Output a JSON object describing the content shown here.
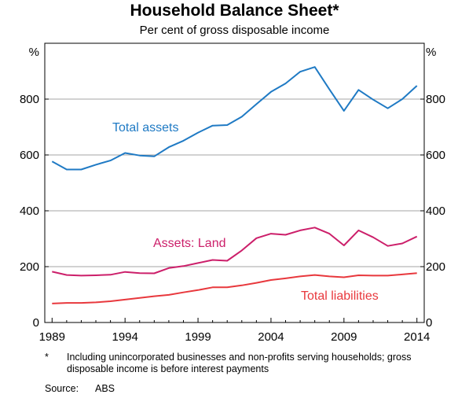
{
  "chart_data": {
    "type": "line",
    "title": "Household Balance Sheet*",
    "subtitle": "Per cent of gross disposable income",
    "y_unit": "%",
    "ylim": [
      0,
      1000
    ],
    "y_ticks": [
      0,
      200,
      400,
      600,
      800
    ],
    "xlim": [
      1988.5,
      2014.5
    ],
    "x_ticks": [
      1989,
      1994,
      1999,
      2004,
      2009,
      2014
    ],
    "grid": true,
    "x": [
      1989,
      1990,
      1991,
      1992,
      1993,
      1994,
      1995,
      1996,
      1997,
      1998,
      1999,
      2000,
      2001,
      2002,
      2003,
      2004,
      2005,
      2006,
      2007,
      2008,
      2009,
      2010,
      2011,
      2012,
      2013,
      2014
    ],
    "series": [
      {
        "name": "Total assets",
        "color": "#1f7ac4",
        "values": [
          577,
          548,
          548,
          565,
          580,
          607,
          598,
          595,
          628,
          651,
          680,
          705,
          707,
          737,
          782,
          826,
          856,
          898,
          915,
          835,
          758,
          833,
          798,
          767,
          800,
          848
        ]
      },
      {
        "name": "Assets: Land",
        "color": "#cc1f6a",
        "values": [
          182,
          170,
          168,
          169,
          171,
          181,
          177,
          176,
          195,
          202,
          213,
          224,
          221,
          258,
          302,
          318,
          314,
          330,
          340,
          318,
          276,
          330,
          305,
          274,
          283,
          308
        ]
      },
      {
        "name": "Total liabilities",
        "color": "#e8383d",
        "values": [
          68,
          70,
          70,
          72,
          76,
          82,
          88,
          94,
          99,
          108,
          116,
          126,
          126,
          133,
          142,
          152,
          158,
          165,
          170,
          165,
          162,
          169,
          168,
          168,
          172,
          177
        ]
      }
    ]
  },
  "footnote": {
    "mark": "*",
    "text": "Including unincorporated businesses and non-profits serving households; gross disposable income is before interest payments"
  },
  "source": {
    "label": "Source:",
    "value": "ABS"
  }
}
